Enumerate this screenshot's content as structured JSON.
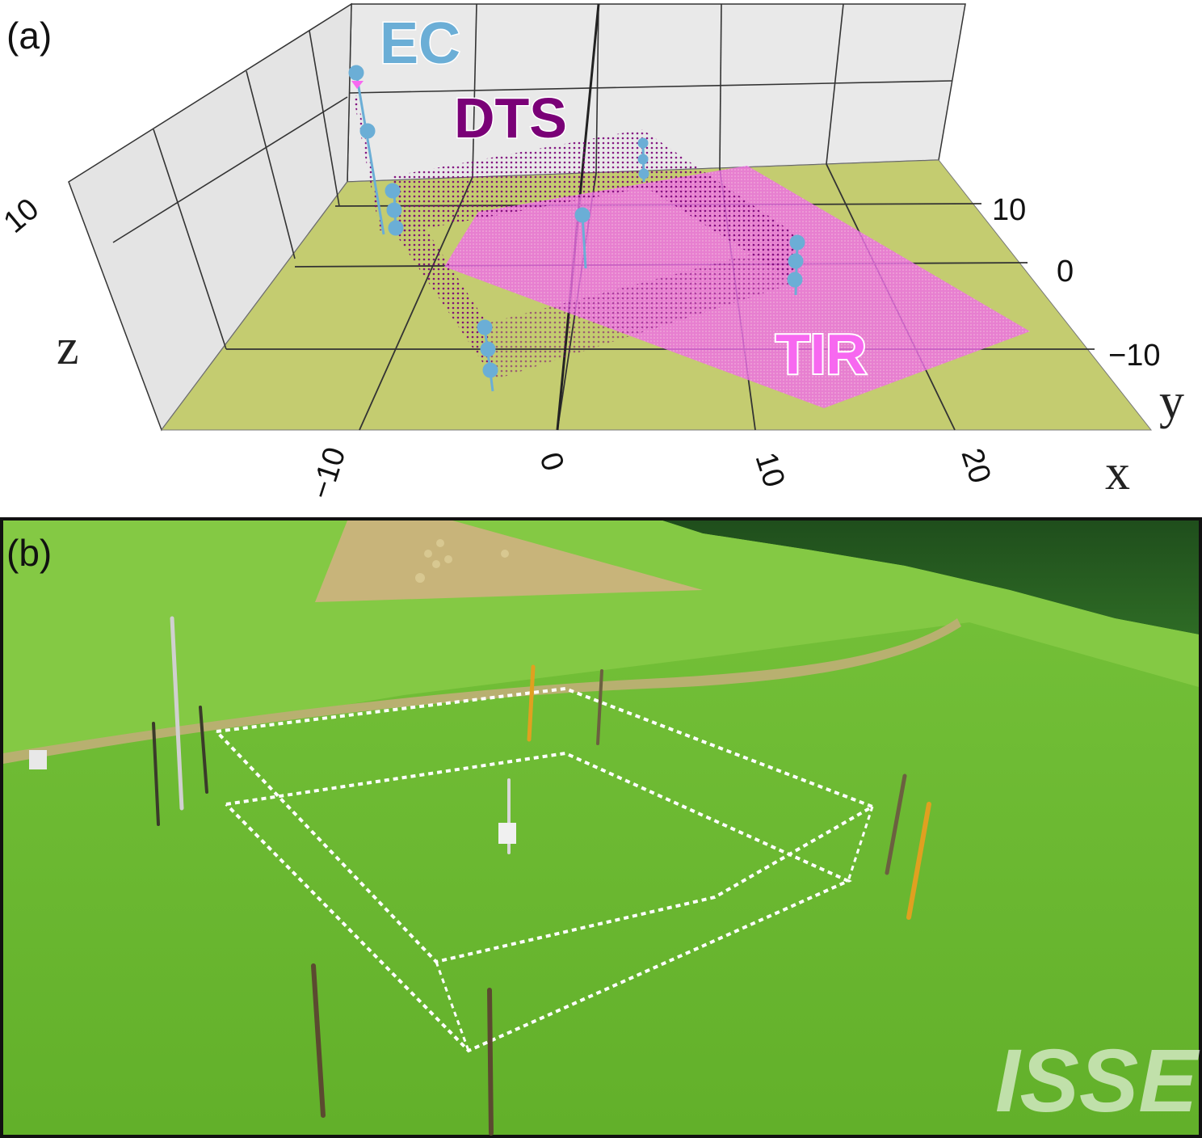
{
  "panel_a": {
    "label": "(a)",
    "legend": {
      "ec": "EC",
      "dts": "DTS",
      "tir": "TIR"
    },
    "axes": {
      "x": {
        "label": "x",
        "ticks": [
          "−10",
          "0",
          "10",
          "20"
        ]
      },
      "y": {
        "label": "y",
        "ticks": [
          "10",
          "0",
          "−10"
        ]
      },
      "z": {
        "label": "z",
        "ticks": [
          "10"
        ]
      }
    },
    "colors": {
      "ec": "#6baed6",
      "dts": "#7a0177",
      "tir": "#f768f0",
      "floor": "#c4cc70",
      "walls": "#e5e5e5"
    }
  },
  "panel_b": {
    "label": "(b)",
    "logo": "ISSE",
    "description_icon": "aerial-photo"
  }
}
